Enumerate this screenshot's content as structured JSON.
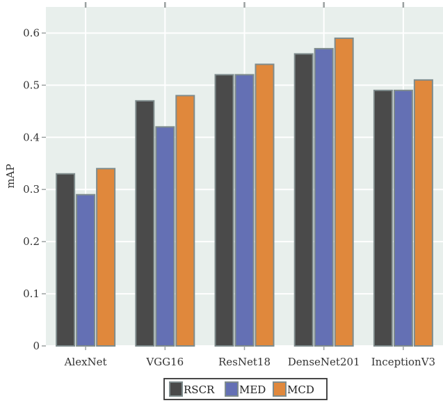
{
  "chart_data": {
    "type": "bar",
    "categories": [
      "AlexNet",
      "VGG16",
      "ResNet18",
      "DenseNet201",
      "InceptionV3"
    ],
    "series": [
      {
        "name": "RSCR",
        "color": "#4a4a4a",
        "values": [
          0.33,
          0.47,
          0.52,
          0.56,
          0.49
        ]
      },
      {
        "name": "MED",
        "color": "#6470b4",
        "values": [
          0.29,
          0.42,
          0.52,
          0.57,
          0.49
        ]
      },
      {
        "name": "MCD",
        "color": "#e0883c",
        "values": [
          0.34,
          0.48,
          0.54,
          0.59,
          0.51
        ]
      }
    ],
    "title": "",
    "xlabel": "",
    "ylabel": "mAP",
    "ylim": [
      0,
      0.65
    ],
    "yticks": [
      "0",
      "0.1",
      "0.2",
      "0.3",
      "0.4",
      "0.5",
      "0.6"
    ],
    "grid": true,
    "legend": "bottom-center",
    "colors": {
      "plot_background": "#e8efec",
      "grid": "#ffffff",
      "bar_edge": "#7f8c8d",
      "tick": "#9aa0a0"
    }
  }
}
